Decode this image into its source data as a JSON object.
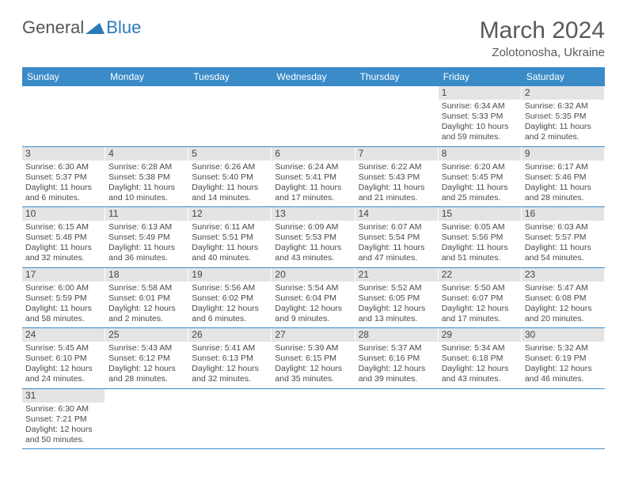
{
  "brand": {
    "part1": "General",
    "part2": "Blue"
  },
  "title": {
    "month": "March 2024",
    "location": "Zolotonosha, Ukraine"
  },
  "colors": {
    "header_bg": "#3b8bc9",
    "daynum_bg": "#e4e4e4",
    "row_border": "#3b8bc9",
    "text": "#4a4a4a"
  },
  "dow": [
    "Sunday",
    "Monday",
    "Tuesday",
    "Wednesday",
    "Thursday",
    "Friday",
    "Saturday"
  ],
  "weeks": [
    [
      null,
      null,
      null,
      null,
      null,
      {
        "n": "1",
        "sr": "Sunrise: 6:34 AM",
        "ss": "Sunset: 5:33 PM",
        "d1": "Daylight: 10 hours",
        "d2": "and 59 minutes."
      },
      {
        "n": "2",
        "sr": "Sunrise: 6:32 AM",
        "ss": "Sunset: 5:35 PM",
        "d1": "Daylight: 11 hours",
        "d2": "and 2 minutes."
      }
    ],
    [
      {
        "n": "3",
        "sr": "Sunrise: 6:30 AM",
        "ss": "Sunset: 5:37 PM",
        "d1": "Daylight: 11 hours",
        "d2": "and 6 minutes."
      },
      {
        "n": "4",
        "sr": "Sunrise: 6:28 AM",
        "ss": "Sunset: 5:38 PM",
        "d1": "Daylight: 11 hours",
        "d2": "and 10 minutes."
      },
      {
        "n": "5",
        "sr": "Sunrise: 6:26 AM",
        "ss": "Sunset: 5:40 PM",
        "d1": "Daylight: 11 hours",
        "d2": "and 14 minutes."
      },
      {
        "n": "6",
        "sr": "Sunrise: 6:24 AM",
        "ss": "Sunset: 5:41 PM",
        "d1": "Daylight: 11 hours",
        "d2": "and 17 minutes."
      },
      {
        "n": "7",
        "sr": "Sunrise: 6:22 AM",
        "ss": "Sunset: 5:43 PM",
        "d1": "Daylight: 11 hours",
        "d2": "and 21 minutes."
      },
      {
        "n": "8",
        "sr": "Sunrise: 6:20 AM",
        "ss": "Sunset: 5:45 PM",
        "d1": "Daylight: 11 hours",
        "d2": "and 25 minutes."
      },
      {
        "n": "9",
        "sr": "Sunrise: 6:17 AM",
        "ss": "Sunset: 5:46 PM",
        "d1": "Daylight: 11 hours",
        "d2": "and 28 minutes."
      }
    ],
    [
      {
        "n": "10",
        "sr": "Sunrise: 6:15 AM",
        "ss": "Sunset: 5:48 PM",
        "d1": "Daylight: 11 hours",
        "d2": "and 32 minutes."
      },
      {
        "n": "11",
        "sr": "Sunrise: 6:13 AM",
        "ss": "Sunset: 5:49 PM",
        "d1": "Daylight: 11 hours",
        "d2": "and 36 minutes."
      },
      {
        "n": "12",
        "sr": "Sunrise: 6:11 AM",
        "ss": "Sunset: 5:51 PM",
        "d1": "Daylight: 11 hours",
        "d2": "and 40 minutes."
      },
      {
        "n": "13",
        "sr": "Sunrise: 6:09 AM",
        "ss": "Sunset: 5:53 PM",
        "d1": "Daylight: 11 hours",
        "d2": "and 43 minutes."
      },
      {
        "n": "14",
        "sr": "Sunrise: 6:07 AM",
        "ss": "Sunset: 5:54 PM",
        "d1": "Daylight: 11 hours",
        "d2": "and 47 minutes."
      },
      {
        "n": "15",
        "sr": "Sunrise: 6:05 AM",
        "ss": "Sunset: 5:56 PM",
        "d1": "Daylight: 11 hours",
        "d2": "and 51 minutes."
      },
      {
        "n": "16",
        "sr": "Sunrise: 6:03 AM",
        "ss": "Sunset: 5:57 PM",
        "d1": "Daylight: 11 hours",
        "d2": "and 54 minutes."
      }
    ],
    [
      {
        "n": "17",
        "sr": "Sunrise: 6:00 AM",
        "ss": "Sunset: 5:59 PM",
        "d1": "Daylight: 11 hours",
        "d2": "and 58 minutes."
      },
      {
        "n": "18",
        "sr": "Sunrise: 5:58 AM",
        "ss": "Sunset: 6:01 PM",
        "d1": "Daylight: 12 hours",
        "d2": "and 2 minutes."
      },
      {
        "n": "19",
        "sr": "Sunrise: 5:56 AM",
        "ss": "Sunset: 6:02 PM",
        "d1": "Daylight: 12 hours",
        "d2": "and 6 minutes."
      },
      {
        "n": "20",
        "sr": "Sunrise: 5:54 AM",
        "ss": "Sunset: 6:04 PM",
        "d1": "Daylight: 12 hours",
        "d2": "and 9 minutes."
      },
      {
        "n": "21",
        "sr": "Sunrise: 5:52 AM",
        "ss": "Sunset: 6:05 PM",
        "d1": "Daylight: 12 hours",
        "d2": "and 13 minutes."
      },
      {
        "n": "22",
        "sr": "Sunrise: 5:50 AM",
        "ss": "Sunset: 6:07 PM",
        "d1": "Daylight: 12 hours",
        "d2": "and 17 minutes."
      },
      {
        "n": "23",
        "sr": "Sunrise: 5:47 AM",
        "ss": "Sunset: 6:08 PM",
        "d1": "Daylight: 12 hours",
        "d2": "and 20 minutes."
      }
    ],
    [
      {
        "n": "24",
        "sr": "Sunrise: 5:45 AM",
        "ss": "Sunset: 6:10 PM",
        "d1": "Daylight: 12 hours",
        "d2": "and 24 minutes."
      },
      {
        "n": "25",
        "sr": "Sunrise: 5:43 AM",
        "ss": "Sunset: 6:12 PM",
        "d1": "Daylight: 12 hours",
        "d2": "and 28 minutes."
      },
      {
        "n": "26",
        "sr": "Sunrise: 5:41 AM",
        "ss": "Sunset: 6:13 PM",
        "d1": "Daylight: 12 hours",
        "d2": "and 32 minutes."
      },
      {
        "n": "27",
        "sr": "Sunrise: 5:39 AM",
        "ss": "Sunset: 6:15 PM",
        "d1": "Daylight: 12 hours",
        "d2": "and 35 minutes."
      },
      {
        "n": "28",
        "sr": "Sunrise: 5:37 AM",
        "ss": "Sunset: 6:16 PM",
        "d1": "Daylight: 12 hours",
        "d2": "and 39 minutes."
      },
      {
        "n": "29",
        "sr": "Sunrise: 5:34 AM",
        "ss": "Sunset: 6:18 PM",
        "d1": "Daylight: 12 hours",
        "d2": "and 43 minutes."
      },
      {
        "n": "30",
        "sr": "Sunrise: 5:32 AM",
        "ss": "Sunset: 6:19 PM",
        "d1": "Daylight: 12 hours",
        "d2": "and 46 minutes."
      }
    ],
    [
      {
        "n": "31",
        "sr": "Sunrise: 6:30 AM",
        "ss": "Sunset: 7:21 PM",
        "d1": "Daylight: 12 hours",
        "d2": "and 50 minutes."
      },
      null,
      null,
      null,
      null,
      null,
      null
    ]
  ]
}
